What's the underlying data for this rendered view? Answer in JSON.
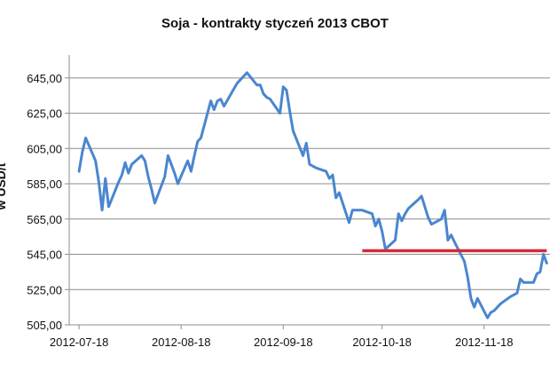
{
  "chart_data": {
    "type": "line",
    "title": "Soja - kontrakty styczeń 2013 CBOT",
    "ylabel": "w USD/t",
    "xlabel": "",
    "ylim": [
      505,
      658
    ],
    "yticks": [
      "505,00",
      "525,00",
      "545,00",
      "565,00",
      "585,00",
      "605,00",
      "625,00",
      "645,00"
    ],
    "ytick_values": [
      505,
      525,
      545,
      565,
      585,
      605,
      625,
      645
    ],
    "xticks": [
      "2012-07-18",
      "2012-08-18",
      "2012-09-18",
      "2012-10-18",
      "2012-11-18"
    ],
    "grid": "horizontal",
    "series": [
      {
        "color": "#4a86cf",
        "points": [
          [
            "2012-07-18",
            592
          ],
          [
            "2012-07-19",
            603
          ],
          [
            "2012-07-20",
            611
          ],
          [
            "2012-07-23",
            598
          ],
          [
            "2012-07-24",
            586
          ],
          [
            "2012-07-25",
            570
          ],
          [
            "2012-07-26",
            588
          ],
          [
            "2012-07-27",
            572
          ],
          [
            "2012-07-30",
            586
          ],
          [
            "2012-07-31",
            590
          ],
          [
            "2012-08-01",
            597
          ],
          [
            "2012-08-02",
            591
          ],
          [
            "2012-08-03",
            596
          ],
          [
            "2012-08-06",
            601
          ],
          [
            "2012-08-07",
            598
          ],
          [
            "2012-08-08",
            589
          ],
          [
            "2012-08-09",
            582
          ],
          [
            "2012-08-10",
            574
          ],
          [
            "2012-08-13",
            589
          ],
          [
            "2012-08-14",
            601
          ],
          [
            "2012-08-15",
            596
          ],
          [
            "2012-08-16",
            591
          ],
          [
            "2012-08-17",
            585
          ],
          [
            "2012-08-20",
            598
          ],
          [
            "2012-08-21",
            592
          ],
          [
            "2012-08-22",
            601
          ],
          [
            "2012-08-23",
            609
          ],
          [
            "2012-08-24",
            611
          ],
          [
            "2012-08-27",
            632
          ],
          [
            "2012-08-28",
            627
          ],
          [
            "2012-08-29",
            632
          ],
          [
            "2012-08-30",
            633
          ],
          [
            "2012-08-31",
            629
          ],
          [
            "2012-09-04",
            642
          ],
          [
            "2012-09-05",
            644
          ],
          [
            "2012-09-06",
            646
          ],
          [
            "2012-09-07",
            648
          ],
          [
            "2012-09-10",
            641
          ],
          [
            "2012-09-11",
            641
          ],
          [
            "2012-09-12",
            636
          ],
          [
            "2012-09-13",
            634
          ],
          [
            "2012-09-14",
            633
          ],
          [
            "2012-09-17",
            625
          ],
          [
            "2012-09-18",
            640
          ],
          [
            "2012-09-19",
            638
          ],
          [
            "2012-09-20",
            626
          ],
          [
            "2012-09-21",
            615
          ],
          [
            "2012-09-24",
            601
          ],
          [
            "2012-09-25",
            608
          ],
          [
            "2012-09-26",
            596
          ],
          [
            "2012-09-27",
            595
          ],
          [
            "2012-09-28",
            594
          ],
          [
            "2012-10-01",
            592
          ],
          [
            "2012-10-02",
            588
          ],
          [
            "2012-10-03",
            590
          ],
          [
            "2012-10-04",
            577
          ],
          [
            "2012-10-05",
            580
          ],
          [
            "2012-10-08",
            563
          ],
          [
            "2012-10-09",
            570
          ],
          [
            "2012-10-10",
            570
          ],
          [
            "2012-10-11",
            570
          ],
          [
            "2012-10-12",
            570
          ],
          [
            "2012-10-15",
            568
          ],
          [
            "2012-10-16",
            561
          ],
          [
            "2012-10-17",
            565
          ],
          [
            "2012-10-18",
            558
          ],
          [
            "2012-10-19",
            548
          ],
          [
            "2012-10-22",
            553
          ],
          [
            "2012-10-23",
            568
          ],
          [
            "2012-10-24",
            564
          ],
          [
            "2012-10-25",
            568
          ],
          [
            "2012-10-26",
            571
          ],
          [
            "2012-10-29",
            576
          ],
          [
            "2012-10-30",
            578
          ],
          [
            "2012-10-31",
            572
          ],
          [
            "2012-11-01",
            566
          ],
          [
            "2012-11-02",
            562
          ],
          [
            "2012-11-05",
            565
          ],
          [
            "2012-11-06",
            570
          ],
          [
            "2012-11-07",
            553
          ],
          [
            "2012-11-08",
            556
          ],
          [
            "2012-11-09",
            552
          ],
          [
            "2012-11-12",
            541
          ],
          [
            "2012-11-13",
            532
          ],
          [
            "2012-11-14",
            520
          ],
          [
            "2012-11-15",
            515
          ],
          [
            "2012-11-16",
            520
          ],
          [
            "2012-11-19",
            509
          ],
          [
            "2012-11-20",
            512
          ],
          [
            "2012-11-21",
            513
          ],
          [
            "2012-11-23",
            517
          ],
          [
            "2012-11-26",
            521
          ],
          [
            "2012-11-27",
            522
          ],
          [
            "2012-11-28",
            523
          ],
          [
            "2012-11-29",
            531
          ],
          [
            "2012-11-30",
            529
          ],
          [
            "2012-12-03",
            529
          ],
          [
            "2012-12-04",
            534
          ],
          [
            "2012-12-05",
            535
          ],
          [
            "2012-12-06",
            545
          ],
          [
            "2012-12-07",
            540
          ]
        ]
      }
    ],
    "reference_line": {
      "y": 547,
      "x_start": "2012-10-12",
      "x_end": "2012-12-07",
      "color": "#d42a3a"
    }
  }
}
